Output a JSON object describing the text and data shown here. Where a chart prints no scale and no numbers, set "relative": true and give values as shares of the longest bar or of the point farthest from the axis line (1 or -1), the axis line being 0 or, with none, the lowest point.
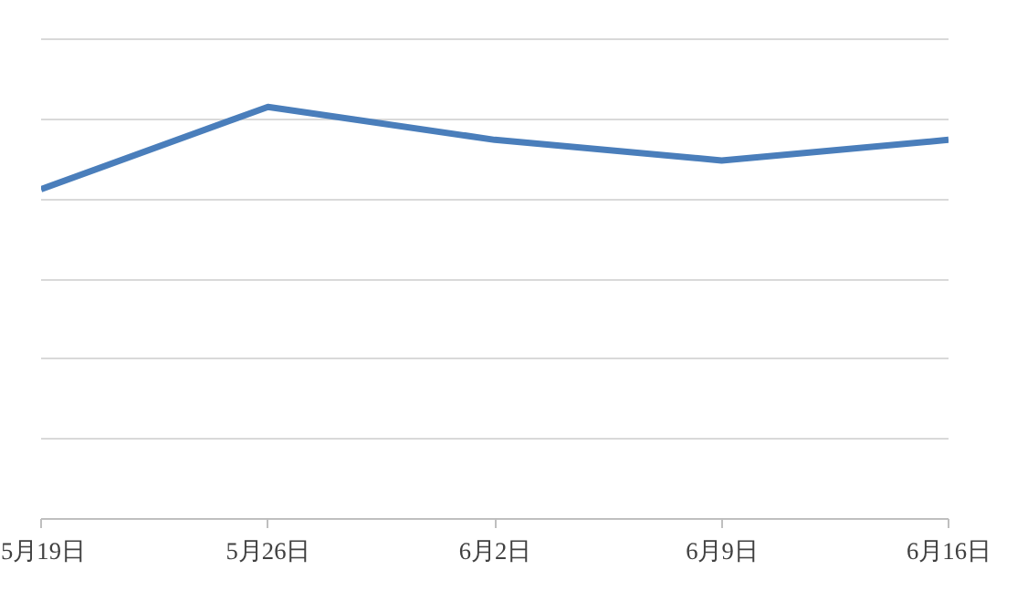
{
  "chart_data": {
    "type": "line",
    "relative": true,
    "categories": [
      "5月19日",
      "5月26日",
      "6月2日",
      "6月9日",
      "6月16日"
    ],
    "series": [
      {
        "color": "#4a7ebb",
        "values": [
          0.8,
          1,
          0.92,
          0.87,
          0.92
        ]
      }
    ],
    "grid": "y",
    "marker": "none",
    "line_style": "solid"
  }
}
